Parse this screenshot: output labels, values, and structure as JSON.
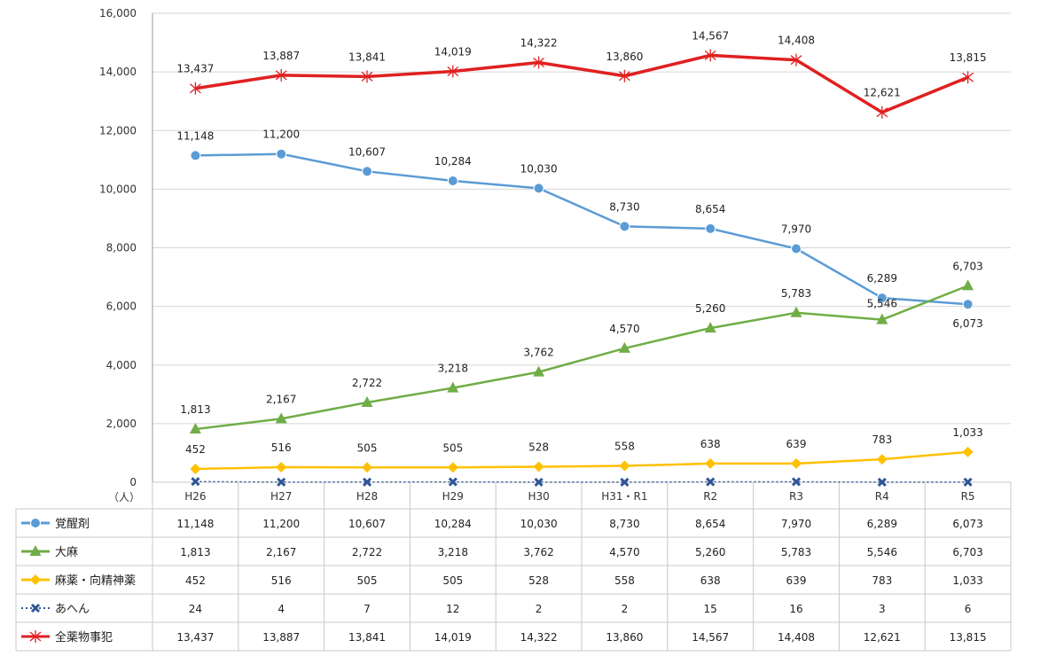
{
  "chart_data": {
    "type": "line",
    "ylabel": "（人）",
    "ylim": [
      0,
      16000
    ],
    "yticks": [
      "0",
      "2,000",
      "4,000",
      "6,000",
      "8,000",
      "10,000",
      "12,000",
      "14,000",
      "16,000"
    ],
    "ytick_values": [
      0,
      2000,
      4000,
      6000,
      8000,
      10000,
      12000,
      14000,
      16000
    ],
    "grid": true,
    "legend_placement": "data-table-left",
    "categories": [
      "H26",
      "H27",
      "H28",
      "H29",
      "H30",
      "H31・R1",
      "R2",
      "R3",
      "R4",
      "R5"
    ],
    "series": [
      {
        "name": "覚醒剤",
        "color": "#5b9bd5",
        "marker": "circle",
        "values": [
          11148,
          11200,
          10607,
          10284,
          10030,
          8730,
          8654,
          7970,
          6289,
          6073
        ],
        "labels": [
          "11,148",
          "11,200",
          "10,607",
          "10,284",
          "10,030",
          "8,730",
          "8,654",
          "7,970",
          "6,289",
          "6,073"
        ]
      },
      {
        "name": "大麻",
        "color": "#70ad47",
        "marker": "triangle",
        "values": [
          1813,
          2167,
          2722,
          3218,
          3762,
          4570,
          5260,
          5783,
          5546,
          6703
        ],
        "labels": [
          "1,813",
          "2,167",
          "2,722",
          "3,218",
          "3,762",
          "4,570",
          "5,260",
          "5,783",
          "5,546",
          "6,703"
        ]
      },
      {
        "name": "麻薬・向精神薬",
        "color": "#ffc000",
        "marker": "diamond",
        "values": [
          452,
          516,
          505,
          505,
          528,
          558,
          638,
          639,
          783,
          1033
        ],
        "labels": [
          "452",
          "516",
          "505",
          "505",
          "528",
          "558",
          "638",
          "639",
          "783",
          "1,033"
        ]
      },
      {
        "name": "あへん",
        "color": "#2f5597",
        "marker": "x",
        "dashed": true,
        "values": [
          24,
          4,
          7,
          12,
          2,
          2,
          15,
          16,
          3,
          6
        ],
        "labels": [
          "24",
          "4",
          "7",
          "12",
          "2",
          "2",
          "15",
          "16",
          "3",
          "6"
        ]
      },
      {
        "name": "全薬物事犯",
        "color": "#e02020",
        "marker": "star",
        "values": [
          13437,
          13887,
          13841,
          14019,
          14322,
          13860,
          14567,
          14408,
          12621,
          13815
        ],
        "labels": [
          "13,437",
          "13,887",
          "13,841",
          "14,019",
          "14,322",
          "13,860",
          "14,567",
          "14,408",
          "12,621",
          "13,815"
        ]
      }
    ]
  }
}
